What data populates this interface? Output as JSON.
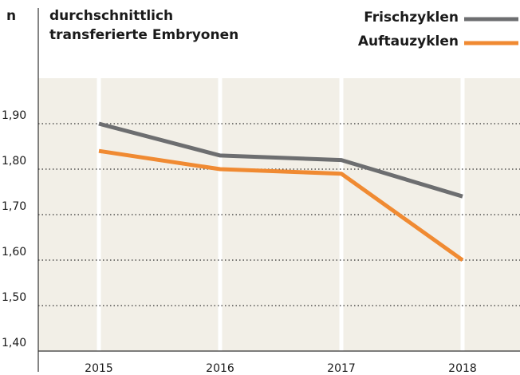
{
  "chart_data": {
    "type": "line",
    "y_axis_label": "n",
    "title": [
      "durchschnittlich",
      "transferierte Embryonen"
    ],
    "categories": [
      "2015",
      "2016",
      "2017",
      "2018"
    ],
    "series": [
      {
        "name": "Frischzyklen",
        "color": "#6d6e70",
        "values": [
          1.9,
          1.83,
          1.82,
          1.74
        ]
      },
      {
        "name": "Auftauzyklen",
        "color": "#f08a32",
        "values": [
          1.84,
          1.8,
          1.79,
          1.6
        ]
      }
    ],
    "ylim": [
      1.4,
      2.0
    ],
    "yticks": [
      {
        "value": 1.4,
        "label": "1,40"
      },
      {
        "value": 1.5,
        "label": "1,50"
      },
      {
        "value": 1.6,
        "label": "1,60"
      },
      {
        "value": 1.7,
        "label": "1,70"
      },
      {
        "value": 1.8,
        "label": "1,80"
      },
      {
        "value": 1.9,
        "label": "1,90"
      }
    ],
    "grid": true,
    "legend": "top-right"
  }
}
